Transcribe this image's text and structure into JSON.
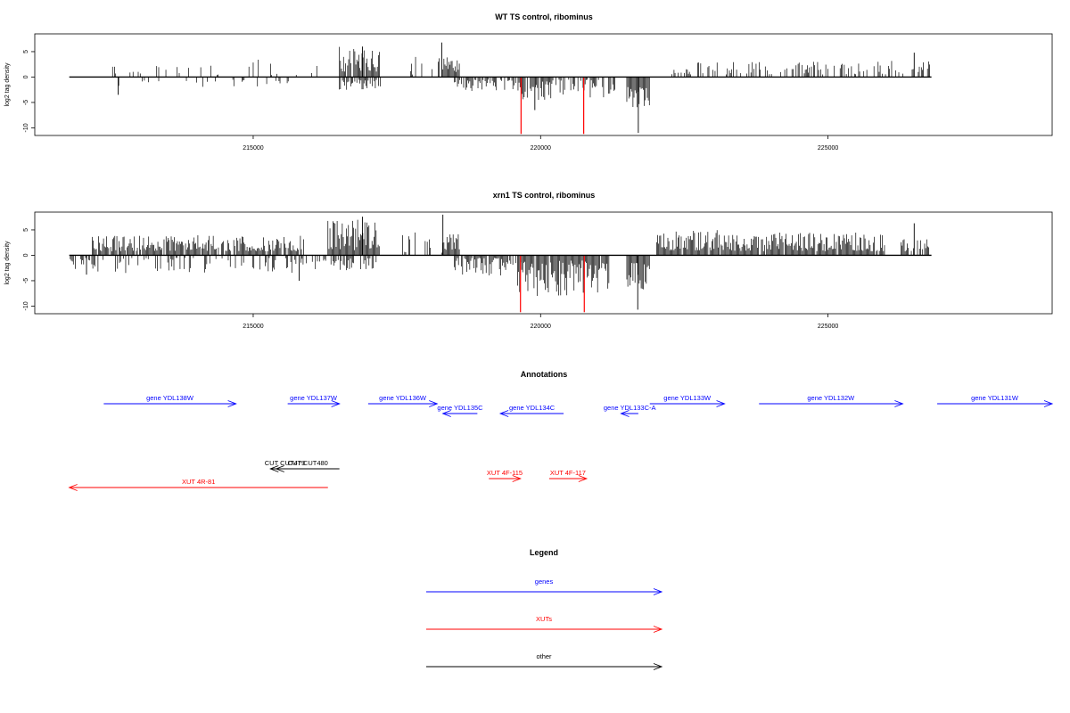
{
  "chart_data": [
    {
      "type": "bar",
      "title": "WT TS control, ribominus",
      "xlabel": "",
      "ylabel": "log2 tag density",
      "xlim": [
        211200,
        228900
      ],
      "ylim": [
        -11.5,
        8.5
      ],
      "x_ticks": [
        215000,
        220000,
        225000
      ],
      "x_tick_labels": [
        "215000",
        "220000",
        "225000"
      ],
      "y_ticks": [
        5,
        0,
        -5,
        -10
      ],
      "y_tick_labels": [
        "5",
        "0",
        "-5",
        "-10"
      ],
      "baseline": {
        "from": 211800,
        "to": 226800,
        "value": 0
      },
      "colors": {
        "forward": "#000000",
        "reverse": "#000000",
        "highlight": "#ff0000"
      },
      "forward_regions": [
        {
          "from": 212500,
          "to": 215000,
          "density": 0.12,
          "min": 0.4,
          "max": 3.0
        },
        {
          "from": 215000,
          "to": 216400,
          "density": 0.1,
          "min": 0.4,
          "max": 3.5
        },
        {
          "from": 216500,
          "to": 217200,
          "density": 0.95,
          "min": 1.0,
          "max": 6.0
        },
        {
          "from": 217700,
          "to": 218300,
          "density": 0.25,
          "min": 0.5,
          "max": 4.0
        },
        {
          "from": 218300,
          "to": 218600,
          "density": 0.9,
          "min": 1.0,
          "max": 4.0
        },
        {
          "from": 222000,
          "to": 222500,
          "density": 0.2,
          "min": 0.4,
          "max": 2.0
        },
        {
          "from": 222500,
          "to": 226000,
          "density": 0.45,
          "min": 0.5,
          "max": 3.0
        },
        {
          "from": 226000,
          "to": 226800,
          "density": 0.4,
          "min": 0.5,
          "max": 3.5
        }
      ],
      "forward_peaks": [
        {
          "x": 218280,
          "y": 6.8
        },
        {
          "x": 216900,
          "y": 6.0
        },
        {
          "x": 226500,
          "y": 4.8
        }
      ],
      "reverse_regions": [
        {
          "from": 212500,
          "to": 214200,
          "density": 0.06,
          "min": 0.5,
          "max": 2.0
        },
        {
          "from": 214200,
          "to": 215800,
          "density": 0.15,
          "min": 0.5,
          "max": 2.0
        },
        {
          "from": 216500,
          "to": 217300,
          "density": 0.6,
          "min": 0.5,
          "max": 2.5
        },
        {
          "from": 218500,
          "to": 219500,
          "density": 0.6,
          "min": 0.5,
          "max": 3.0
        },
        {
          "from": 219500,
          "to": 220400,
          "density": 0.7,
          "min": 0.5,
          "max": 4.5
        },
        {
          "from": 220400,
          "to": 221300,
          "density": 0.55,
          "min": 0.5,
          "max": 4.0
        },
        {
          "from": 221500,
          "to": 221900,
          "density": 1.0,
          "min": 1.0,
          "max": 6.0
        }
      ],
      "reverse_peaks": [
        {
          "x": 212650,
          "y": -3.5
        },
        {
          "x": 221700,
          "y": -11.0
        },
        {
          "x": 219900,
          "y": -6.5
        }
      ],
      "highlights": [
        {
          "x": 219660,
          "y": -11.2
        },
        {
          "x": 220750,
          "y": -11.2
        }
      ]
    },
    {
      "type": "bar",
      "title": "xrn1 TS control, ribominus",
      "xlabel": "",
      "ylabel": "log2 tag density",
      "xlim": [
        211200,
        228900
      ],
      "ylim": [
        -11.5,
        8.5
      ],
      "x_ticks": [
        215000,
        220000,
        225000
      ],
      "x_tick_labels": [
        "215000",
        "220000",
        "225000"
      ],
      "y_ticks": [
        5,
        0,
        -5,
        -10
      ],
      "y_tick_labels": [
        "5",
        "0",
        "-5",
        "-10"
      ],
      "baseline": {
        "from": 211800,
        "to": 226800,
        "value": 0
      },
      "colors": {
        "forward": "#000000",
        "reverse": "#000000",
        "highlight": "#ff0000"
      },
      "forward_regions": [
        {
          "from": 212200,
          "to": 215900,
          "density": 0.9,
          "min": 0.8,
          "max": 4.0
        },
        {
          "from": 216300,
          "to": 217200,
          "density": 1.0,
          "min": 1.0,
          "max": 7.5
        },
        {
          "from": 217600,
          "to": 218300,
          "density": 0.3,
          "min": 0.5,
          "max": 4.5
        },
        {
          "from": 218300,
          "to": 218600,
          "density": 0.9,
          "min": 1.0,
          "max": 4.5
        },
        {
          "from": 222000,
          "to": 223200,
          "density": 0.95,
          "min": 1.0,
          "max": 5.0
        },
        {
          "from": 223200,
          "to": 226000,
          "density": 0.9,
          "min": 0.8,
          "max": 4.5
        },
        {
          "from": 226200,
          "to": 226800,
          "density": 0.6,
          "min": 0.8,
          "max": 4.5
        }
      ],
      "forward_peaks": [
        {
          "x": 218300,
          "y": 8.0
        },
        {
          "x": 216900,
          "y": 7.6
        },
        {
          "x": 226500,
          "y": 6.3
        }
      ],
      "reverse_regions": [
        {
          "from": 211800,
          "to": 212300,
          "density": 0.6,
          "min": 0.5,
          "max": 3.5
        },
        {
          "from": 212300,
          "to": 216300,
          "density": 0.3,
          "min": 0.5,
          "max": 3.5
        },
        {
          "from": 216300,
          "to": 217200,
          "density": 0.6,
          "min": 0.5,
          "max": 3.0
        },
        {
          "from": 218500,
          "to": 219600,
          "density": 0.8,
          "min": 0.5,
          "max": 4.0
        },
        {
          "from": 219600,
          "to": 221200,
          "density": 0.95,
          "min": 1.0,
          "max": 8.0
        },
        {
          "from": 221500,
          "to": 221900,
          "density": 1.0,
          "min": 1.5,
          "max": 7.0
        }
      ],
      "reverse_peaks": [
        {
          "x": 221690,
          "y": -10.7
        },
        {
          "x": 212100,
          "y": -3.8
        },
        {
          "x": 215800,
          "y": -5.0
        }
      ],
      "highlights": [
        {
          "x": 219650,
          "y": -11.2
        },
        {
          "x": 220760,
          "y": -11.2
        }
      ]
    }
  ],
  "annotations": {
    "title": "Annotations",
    "xlim": [
      211200,
      228900
    ],
    "features": [
      {
        "label": "gene YDL138W",
        "start": 212400,
        "end": 214700,
        "strand": "+",
        "kind": "gene",
        "row": 0
      },
      {
        "label": "gene YDL137W",
        "start": 215600,
        "end": 216500,
        "strand": "+",
        "kind": "gene",
        "row": 0
      },
      {
        "label": "gene YDL136W",
        "start": 217000,
        "end": 218200,
        "strand": "+",
        "kind": "gene",
        "row": 0
      },
      {
        "label": "gene YDL135C",
        "start": 218300,
        "end": 218900,
        "strand": "-",
        "kind": "gene",
        "row": 1
      },
      {
        "label": "gene YDL134C",
        "start": 219300,
        "end": 220400,
        "strand": "-",
        "kind": "gene",
        "row": 1
      },
      {
        "label": "gene YDL133C-A",
        "start": 221400,
        "end": 221700,
        "strand": "-",
        "kind": "gene",
        "row": 1
      },
      {
        "label": "gene YDL133W",
        "start": 221900,
        "end": 223200,
        "strand": "+",
        "kind": "gene",
        "row": 0
      },
      {
        "label": "gene YDL132W",
        "start": 223800,
        "end": 226300,
        "strand": "+",
        "kind": "gene",
        "row": 0
      },
      {
        "label": "gene YDL131W",
        "start": 226900,
        "end": 228900,
        "strand": "+",
        "kind": "gene",
        "row": 0
      },
      {
        "label": "CUT CUT479",
        "start": 215300,
        "end": 215800,
        "strand": "-",
        "kind": "other",
        "row": 2
      },
      {
        "label": "CUT CUT480",
        "start": 215400,
        "end": 216500,
        "strand": "-",
        "kind": "other",
        "row": 2
      },
      {
        "label": "XUT 4F-115",
        "start": 219100,
        "end": 219650,
        "strand": "+",
        "kind": "xut",
        "row": 3
      },
      {
        "label": "XUT 4F-117",
        "start": 220150,
        "end": 220800,
        "strand": "+",
        "kind": "xut",
        "row": 3
      },
      {
        "label": "XUT 4R-81",
        "start": 211800,
        "end": 216300,
        "strand": "-",
        "kind": "xut",
        "row": 4
      }
    ]
  },
  "legend": {
    "title": "Legend",
    "items": [
      {
        "label": "genes",
        "color": "#0000ff"
      },
      {
        "label": "XUTs",
        "color": "#ff0000"
      },
      {
        "label": "other",
        "color": "#000000"
      }
    ]
  }
}
